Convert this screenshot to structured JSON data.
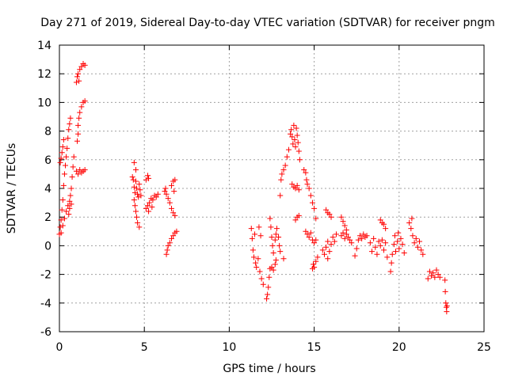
{
  "chart_data": {
    "type": "scatter",
    "title": "Day 271 of 2019, Sidereal Day-to-day VTEC variation (SDTVAR) for receiver pngm",
    "xlabel": "GPS time / hours",
    "ylabel": "SDTVAR / TECUs",
    "xlim": [
      0,
      25
    ],
    "ylim": [
      -6,
      14
    ],
    "xticks": [
      "0",
      "5",
      "10",
      "15",
      "20",
      "25"
    ],
    "yticks": [
      "-6",
      "-4",
      "-2",
      "0",
      "2",
      "4",
      "6",
      "8",
      "10",
      "12",
      "14"
    ],
    "grid": true,
    "marker": "+",
    "color": "#ff0000",
    "series": [
      {
        "name": "SDTVAR",
        "points": [
          [
            0.0,
            0.8
          ],
          [
            0.05,
            1.3
          ],
          [
            0.1,
            1.8
          ],
          [
            0.15,
            2.5
          ],
          [
            0.2,
            3.2
          ],
          [
            0.25,
            4.2
          ],
          [
            0.3,
            5.0
          ],
          [
            0.35,
            5.6
          ],
          [
            0.4,
            6.2
          ],
          [
            0.45,
            6.8
          ],
          [
            0.5,
            7.5
          ],
          [
            0.55,
            8.1
          ],
          [
            0.6,
            8.5
          ],
          [
            0.65,
            8.9
          ],
          [
            0.05,
            5.8
          ],
          [
            0.1,
            6.1
          ],
          [
            0.15,
            6.5
          ],
          [
            0.2,
            6.9
          ],
          [
            0.25,
            7.4
          ],
          [
            0.1,
            0.9
          ],
          [
            0.2,
            1.4
          ],
          [
            0.3,
            1.9
          ],
          [
            0.4,
            2.4
          ],
          [
            0.5,
            2.8
          ],
          [
            0.6,
            3.1
          ],
          [
            0.65,
            3.5
          ],
          [
            0.7,
            4.0
          ],
          [
            0.75,
            4.8
          ],
          [
            0.8,
            5.5
          ],
          [
            0.85,
            6.2
          ],
          [
            0.55,
            2.2
          ],
          [
            0.6,
            2.6
          ],
          [
            0.7,
            2.9
          ],
          [
            1.0,
            11.4
          ],
          [
            1.05,
            11.8
          ],
          [
            1.1,
            12.0
          ],
          [
            1.15,
            11.5
          ],
          [
            1.2,
            12.3
          ],
          [
            1.3,
            12.5
          ],
          [
            1.4,
            12.7
          ],
          [
            1.5,
            12.6
          ],
          [
            1.0,
            5.2
          ],
          [
            1.1,
            5.0
          ],
          [
            1.2,
            5.3
          ],
          [
            1.3,
            5.1
          ],
          [
            1.4,
            5.2
          ],
          [
            1.5,
            5.3
          ],
          [
            1.1,
            8.4
          ],
          [
            1.15,
            8.9
          ],
          [
            1.2,
            9.3
          ],
          [
            1.3,
            9.7
          ],
          [
            1.4,
            10.0
          ],
          [
            1.5,
            10.1
          ],
          [
            1.1,
            7.8
          ],
          [
            1.05,
            7.3
          ],
          [
            4.3,
            4.8
          ],
          [
            4.35,
            4.6
          ],
          [
            4.4,
            4.1
          ],
          [
            4.45,
            3.7
          ],
          [
            4.5,
            4.5
          ],
          [
            4.55,
            4.0
          ],
          [
            4.6,
            3.6
          ],
          [
            4.65,
            3.4
          ],
          [
            4.7,
            4.3
          ],
          [
            4.75,
            3.9
          ],
          [
            4.8,
            3.5
          ],
          [
            4.4,
            5.8
          ],
          [
            4.5,
            5.3
          ],
          [
            4.4,
            3.2
          ],
          [
            4.45,
            2.8
          ],
          [
            4.5,
            2.4
          ],
          [
            4.55,
            2.0
          ],
          [
            4.6,
            1.6
          ],
          [
            4.7,
            1.3
          ],
          [
            5.1,
            4.6
          ],
          [
            5.2,
            4.9
          ],
          [
            5.25,
            4.7
          ],
          [
            5.1,
            2.6
          ],
          [
            5.2,
            2.8
          ],
          [
            5.3,
            3.0
          ],
          [
            5.4,
            3.3
          ],
          [
            5.5,
            3.2
          ],
          [
            5.6,
            3.5
          ],
          [
            5.7,
            3.4
          ],
          [
            5.8,
            3.6
          ],
          [
            5.25,
            2.4
          ],
          [
            5.45,
            2.7
          ],
          [
            6.2,
            3.8
          ],
          [
            6.25,
            4.0
          ],
          [
            6.3,
            3.6
          ],
          [
            6.4,
            3.3
          ],
          [
            6.5,
            3.0
          ],
          [
            6.6,
            2.6
          ],
          [
            6.7,
            2.3
          ],
          [
            6.8,
            2.1
          ],
          [
            6.6,
            4.2
          ],
          [
            6.7,
            4.5
          ],
          [
            6.8,
            4.6
          ],
          [
            6.75,
            3.8
          ],
          [
            6.3,
            -0.6
          ],
          [
            6.35,
            -0.3
          ],
          [
            6.4,
            0.0
          ],
          [
            6.5,
            0.2
          ],
          [
            6.6,
            0.5
          ],
          [
            6.7,
            0.7
          ],
          [
            6.8,
            0.9
          ],
          [
            6.9,
            1.0
          ],
          [
            11.3,
            1.2
          ],
          [
            11.35,
            0.5
          ],
          [
            11.4,
            -0.3
          ],
          [
            11.45,
            -0.8
          ],
          [
            11.5,
            0.8
          ],
          [
            11.55,
            -1.2
          ],
          [
            11.6,
            -1.5
          ],
          [
            11.7,
            -0.9
          ],
          [
            11.8,
            -1.8
          ],
          [
            11.9,
            -2.3
          ],
          [
            12.0,
            -2.7
          ],
          [
            11.75,
            1.3
          ],
          [
            11.85,
            0.7
          ],
          [
            12.2,
            -3.7
          ],
          [
            12.25,
            -3.4
          ],
          [
            12.3,
            -2.9
          ],
          [
            12.35,
            -2.2
          ],
          [
            12.4,
            -1.6
          ],
          [
            12.5,
            -1.5
          ],
          [
            12.6,
            -1.7
          ],
          [
            12.7,
            -1.3
          ],
          [
            12.75,
            -1.0
          ],
          [
            12.4,
            1.9
          ],
          [
            12.45,
            1.3
          ],
          [
            12.5,
            0.6
          ],
          [
            12.55,
            0.0
          ],
          [
            12.6,
            -0.5
          ],
          [
            12.7,
            0.4
          ],
          [
            12.75,
            0.8
          ],
          [
            12.8,
            1.2
          ],
          [
            12.9,
            0.6
          ],
          [
            12.95,
            0.0
          ],
          [
            13.0,
            -0.4
          ],
          [
            13.2,
            -0.9
          ],
          [
            13.0,
            3.5
          ],
          [
            13.05,
            4.6
          ],
          [
            13.1,
            5.0
          ],
          [
            13.2,
            5.3
          ],
          [
            13.3,
            5.6
          ],
          [
            13.6,
            7.8
          ],
          [
            13.65,
            8.1
          ],
          [
            13.7,
            7.6
          ],
          [
            13.75,
            7.1
          ],
          [
            13.8,
            8.4
          ],
          [
            13.85,
            7.4
          ],
          [
            13.9,
            6.9
          ],
          [
            13.95,
            8.2
          ],
          [
            14.0,
            7.7
          ],
          [
            14.05,
            7.2
          ],
          [
            14.1,
            6.6
          ],
          [
            14.15,
            6.0
          ],
          [
            13.5,
            6.7
          ],
          [
            13.4,
            6.2
          ],
          [
            13.7,
            4.3
          ],
          [
            13.8,
            4.1
          ],
          [
            13.9,
            4.0
          ],
          [
            14.0,
            4.2
          ],
          [
            14.1,
            3.9
          ],
          [
            13.9,
            1.8
          ],
          [
            14.0,
            2.0
          ],
          [
            14.1,
            2.1
          ],
          [
            14.4,
            5.3
          ],
          [
            14.5,
            5.1
          ],
          [
            14.55,
            4.6
          ],
          [
            14.6,
            4.3
          ],
          [
            14.7,
            4.0
          ],
          [
            14.8,
            3.5
          ],
          [
            14.9,
            3.0
          ],
          [
            15.0,
            2.6
          ],
          [
            15.1,
            1.9
          ],
          [
            14.5,
            1.0
          ],
          [
            14.6,
            0.8
          ],
          [
            14.7,
            0.6
          ],
          [
            14.8,
            0.9
          ],
          [
            14.9,
            0.4
          ],
          [
            15.0,
            0.2
          ],
          [
            15.1,
            0.4
          ],
          [
            14.9,
            -1.6
          ],
          [
            14.95,
            -1.3
          ],
          [
            15.0,
            -1.5
          ],
          [
            15.1,
            -1.1
          ],
          [
            15.2,
            -0.8
          ],
          [
            15.5,
            -0.3
          ],
          [
            15.6,
            -0.6
          ],
          [
            15.7,
            -0.1
          ],
          [
            15.8,
            0.3
          ],
          [
            15.9,
            -0.4
          ],
          [
            16.0,
            0.1
          ],
          [
            16.1,
            0.6
          ],
          [
            16.2,
            0.3
          ],
          [
            16.3,
            0.8
          ],
          [
            15.8,
            -0.9
          ],
          [
            15.7,
            2.5
          ],
          [
            15.8,
            2.3
          ],
          [
            15.9,
            2.2
          ],
          [
            16.0,
            2.0
          ],
          [
            16.6,
            2.0
          ],
          [
            16.7,
            1.7
          ],
          [
            16.8,
            1.4
          ],
          [
            16.9,
            1.1
          ],
          [
            16.6,
            0.7
          ],
          [
            16.7,
            0.9
          ],
          [
            16.8,
            0.5
          ],
          [
            16.9,
            0.8
          ],
          [
            17.0,
            0.6
          ],
          [
            17.1,
            0.4
          ],
          [
            17.2,
            0.2
          ],
          [
            17.4,
            -0.7
          ],
          [
            17.5,
            -0.2
          ],
          [
            17.6,
            0.4
          ],
          [
            17.7,
            0.7
          ],
          [
            17.8,
            0.5
          ],
          [
            17.9,
            0.8
          ],
          [
            18.0,
            0.6
          ],
          [
            18.1,
            0.7
          ],
          [
            18.3,
            0.2
          ],
          [
            18.4,
            -0.4
          ],
          [
            18.5,
            0.5
          ],
          [
            18.6,
            -0.1
          ],
          [
            18.7,
            -0.6
          ],
          [
            18.8,
            0.3
          ],
          [
            18.9,
            0.0
          ],
          [
            19.0,
            0.4
          ],
          [
            19.1,
            -0.3
          ],
          [
            19.2,
            0.2
          ],
          [
            19.3,
            -0.8
          ],
          [
            18.9,
            1.8
          ],
          [
            19.0,
            1.6
          ],
          [
            19.1,
            1.5
          ],
          [
            19.2,
            1.2
          ],
          [
            19.5,
            -1.8
          ],
          [
            19.55,
            -1.2
          ],
          [
            19.6,
            -0.6
          ],
          [
            19.7,
            0.1
          ],
          [
            19.8,
            -0.4
          ],
          [
            19.9,
            0.3
          ],
          [
            20.0,
            -0.2
          ],
          [
            20.1,
            0.5
          ],
          [
            20.2,
            0.1
          ],
          [
            20.3,
            -0.5
          ],
          [
            19.75,
            0.7
          ],
          [
            19.95,
            0.9
          ],
          [
            20.6,
            1.6
          ],
          [
            20.7,
            1.2
          ],
          [
            20.8,
            0.7
          ],
          [
            20.9,
            0.2
          ],
          [
            21.0,
            0.5
          ],
          [
            21.1,
            -0.1
          ],
          [
            21.2,
            0.3
          ],
          [
            21.3,
            -0.3
          ],
          [
            21.4,
            -0.6
          ],
          [
            20.75,
            1.9
          ],
          [
            21.7,
            -2.3
          ],
          [
            21.8,
            -1.8
          ],
          [
            21.9,
            -2.1
          ],
          [
            22.0,
            -1.9
          ],
          [
            22.1,
            -2.2
          ],
          [
            22.2,
            -1.7
          ],
          [
            22.3,
            -2.0
          ],
          [
            22.4,
            -2.2
          ],
          [
            22.7,
            -2.4
          ],
          [
            22.72,
            -3.2
          ],
          [
            22.75,
            -4.0
          ],
          [
            22.78,
            -4.3
          ],
          [
            22.8,
            -4.6
          ],
          [
            22.82,
            -4.2
          ]
        ]
      }
    ]
  }
}
